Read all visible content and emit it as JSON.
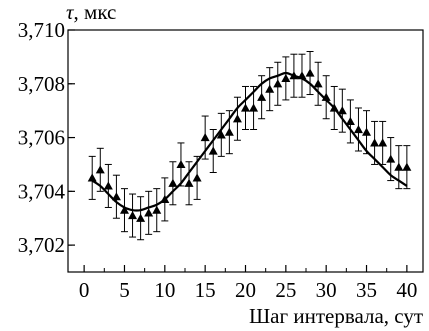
{
  "chart_data": {
    "type": "scatter",
    "title": "",
    "xlabel": "Шаг интервала, сут",
    "ylabel": "τ, мкс",
    "ylabel_symbol": "τ",
    "ylabel_unit": ", мкс",
    "xlim": [
      -2,
      42
    ],
    "ylim": [
      3.701,
      3.71
    ],
    "xticks": [
      0,
      5,
      10,
      15,
      20,
      25,
      30,
      35,
      40
    ],
    "xtick_labels": [
      "0",
      "5",
      "10",
      "15",
      "20",
      "25",
      "30",
      "35",
      "40"
    ],
    "yticks": [
      3.702,
      3.704,
      3.706,
      3.708,
      3.71
    ],
    "ytick_labels": [
      "3,702",
      "3,704",
      "3,706",
      "3,708",
      "3,710"
    ],
    "grid": false,
    "series": [
      {
        "marker": "triangle",
        "x": [
          1,
          2,
          3,
          4,
          5,
          6,
          7,
          8,
          9,
          10,
          11,
          12,
          13,
          14,
          15,
          16,
          17,
          18,
          19,
          20,
          21,
          22,
          23,
          24,
          25,
          26,
          27,
          28,
          29,
          30,
          31,
          32,
          33,
          34,
          35,
          36,
          37,
          38,
          39,
          40
        ],
        "y": [
          3.7045,
          3.7048,
          3.7042,
          3.7038,
          3.7033,
          3.7031,
          3.703,
          3.7032,
          3.7033,
          3.7037,
          3.7043,
          3.705,
          3.7043,
          3.7045,
          3.706,
          3.7055,
          3.7061,
          3.7062,
          3.7067,
          3.7071,
          3.7071,
          3.7075,
          3.7078,
          3.708,
          3.7082,
          3.7083,
          3.7083,
          3.7084,
          3.708,
          3.7075,
          3.7071,
          3.707,
          3.7066,
          3.7063,
          3.7062,
          3.7058,
          3.7058,
          3.7052,
          3.7049,
          3.7049
        ],
        "error": 0.0008
      },
      {
        "type": "line",
        "x": [
          1,
          2,
          3,
          4,
          5,
          6,
          7,
          8,
          9,
          10,
          11,
          12,
          13,
          14,
          15,
          16,
          17,
          18,
          19,
          20,
          21,
          22,
          23,
          24,
          25,
          26,
          27,
          28,
          29,
          30,
          31,
          32,
          33,
          34,
          35,
          36,
          37,
          38,
          39,
          40
        ],
        "y": [
          3.7044,
          3.7042,
          3.7039,
          3.7036,
          3.7034,
          3.7033,
          3.7033,
          3.7034,
          3.7035,
          3.7037,
          3.704,
          3.7043,
          3.7047,
          3.7051,
          3.7055,
          3.7059,
          3.7063,
          3.7067,
          3.7071,
          3.7074,
          3.7077,
          3.708,
          3.7082,
          3.7083,
          3.7084,
          3.7083,
          3.7082,
          3.708,
          3.7077,
          3.7074,
          3.7071,
          3.7067,
          3.7063,
          3.7059,
          3.7055,
          3.7052,
          3.7049,
          3.7046,
          3.7044,
          3.7042
        ]
      }
    ]
  }
}
